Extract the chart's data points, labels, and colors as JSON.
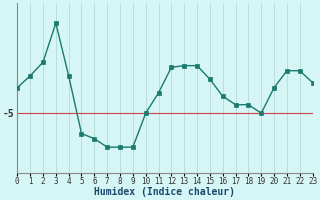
{
  "x": [
    0,
    1,
    2,
    3,
    4,
    5,
    6,
    7,
    8,
    9,
    10,
    11,
    12,
    13,
    14,
    15,
    16,
    17,
    18,
    19,
    20,
    21,
    22,
    23
  ],
  "y": [
    -3.5,
    -2.8,
    -2.0,
    0.3,
    -2.8,
    -6.2,
    -6.5,
    -7.0,
    -7.0,
    -7.0,
    -5.0,
    -3.8,
    -2.3,
    -2.2,
    -2.2,
    -3.0,
    -4.0,
    -4.5,
    -4.5,
    -5.0,
    -3.5,
    -2.5,
    -2.5,
    -3.2
  ],
  "line_color": "#1a7a6e",
  "marker_color": "#1a7a6e",
  "hline_y": -5,
  "hline_color": "#cc4444",
  "bg_color": "#d6f5f5",
  "grid_color": "#b8dede",
  "xlabel": "Humidex (Indice chaleur)",
  "ytick_label": "-5",
  "ytick_val": -5,
  "xlim": [
    0,
    23
  ],
  "ylim": [
    -8.5,
    1.5
  ],
  "figsize": [
    3.2,
    2.0
  ],
  "dpi": 100
}
